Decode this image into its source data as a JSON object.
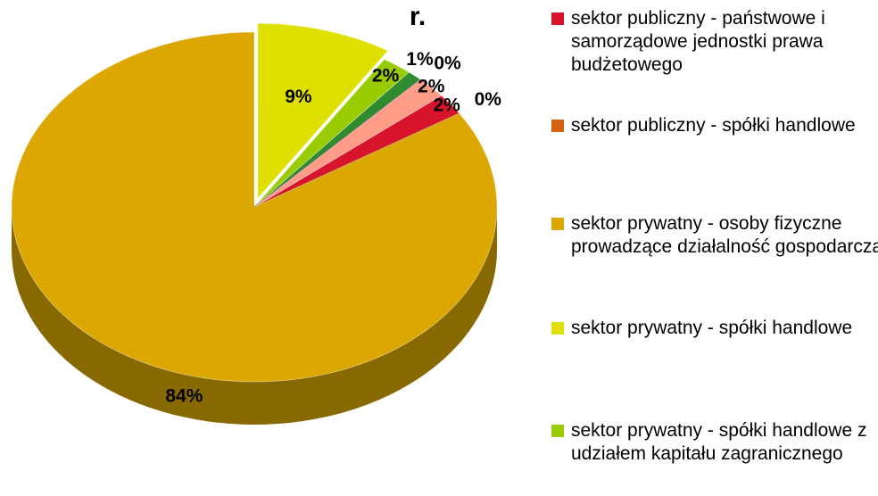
{
  "chart_data": {
    "type": "pie3d",
    "title": "r.",
    "categories": [
      "sektor publiczny - państwowe i samorządowe jednostki prawa budżetowego",
      "sektor publiczny - spółki handlowe",
      "sektor prywatny - osoby fizyczne prowadzące działalność gospodarczą",
      "sektor prywatny - spółki handlowe",
      "sektor prywatny - spółki handlowe z udziałem kapitału zagranicznego",
      null,
      null,
      null
    ],
    "values": [
      2,
      0,
      84,
      9,
      2,
      1,
      0,
      2
    ],
    "value_labels": [
      "2%",
      "0%",
      "84%",
      "9%",
      "2%",
      "1%",
      "0%",
      "2%"
    ],
    "colors": [
      "#d8142c",
      "#d5620e",
      "#dba700",
      "#e0e000",
      "#98cc00",
      "#2e8b2e",
      "#7a3d8c",
      "#ff9c88"
    ],
    "exploded": [
      false,
      false,
      false,
      true,
      false,
      false,
      false,
      false
    ]
  }
}
